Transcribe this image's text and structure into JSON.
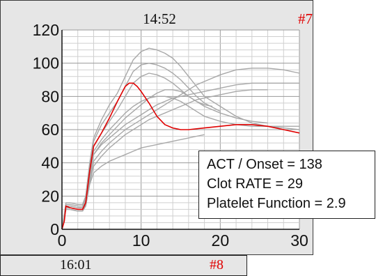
{
  "panel": {
    "time": "14:52",
    "id": "#7",
    "id_color": "#e00000",
    "background": "#e6e6e6"
  },
  "results": {
    "act_onset": "ACT / Onset = 138",
    "clot_rate": "Clot RATE = 29",
    "platelet_function": "Platelet Function = 2.9"
  },
  "next_panel": {
    "time": "16:01",
    "id": "#8"
  },
  "chart_data": {
    "type": "line",
    "title": "",
    "xlabel": "",
    "ylabel": "",
    "xlim": [
      0,
      30
    ],
    "ylim": [
      0,
      120
    ],
    "x_ticks": [
      "0",
      "10",
      "20",
      "30"
    ],
    "y_ticks": [
      "0",
      "20",
      "40",
      "60",
      "80",
      "100",
      "120"
    ],
    "grid": true,
    "highlight_color": "#e00000",
    "reference_color": "#a8a8a8",
    "highlight_series": {
      "x": [
        0,
        0.3,
        0.5,
        1,
        2,
        2.6,
        3,
        3.5,
        4,
        5,
        6,
        7,
        8,
        8.5,
        9,
        9.5,
        10,
        11,
        12,
        13,
        14,
        15,
        16,
        18,
        20,
        22,
        24,
        26,
        28,
        30
      ],
      "y": [
        0,
        5,
        14,
        13,
        12,
        12,
        16,
        35,
        50,
        58,
        67,
        77,
        86,
        88,
        88,
        86,
        83,
        76,
        68,
        63,
        61,
        60,
        60,
        61,
        62,
        63,
        63,
        62,
        60,
        58
      ]
    },
    "reference_series": [
      {
        "x": [
          0,
          0.5,
          1,
          2,
          2.6,
          3,
          3.5,
          4,
          5,
          6,
          7,
          8,
          9,
          10,
          11,
          12,
          13,
          14,
          15,
          16,
          17,
          18,
          20,
          22,
          24,
          26,
          28,
          30
        ],
        "y": [
          0,
          15,
          15,
          14,
          14,
          20,
          40,
          55,
          66,
          75,
          82,
          92,
          102,
          107,
          109,
          108,
          106,
          103,
          98,
          92,
          86,
          80,
          74,
          68,
          64,
          62,
          61,
          60
        ]
      },
      {
        "x": [
          0,
          0.5,
          1,
          2,
          2.6,
          3,
          3.5,
          4,
          5,
          6,
          7,
          8,
          9,
          10,
          11,
          12,
          13,
          14,
          15,
          16,
          17,
          18,
          20
        ],
        "y": [
          0,
          14,
          14,
          13,
          13,
          18,
          38,
          53,
          63,
          70,
          77,
          86,
          95,
          99,
          100,
          99,
          97,
          94,
          90,
          85,
          80,
          76,
          71
        ]
      },
      {
        "x": [
          0,
          0.5,
          1,
          2,
          2.6,
          3,
          3.5,
          4,
          5,
          6,
          7,
          8,
          9,
          10,
          11,
          12,
          13,
          14,
          15,
          16,
          17,
          18,
          20,
          22,
          24,
          26
        ],
        "y": [
          0,
          16,
          16,
          15,
          15,
          20,
          37,
          50,
          58,
          65,
          72,
          80,
          88,
          92,
          94,
          93,
          91,
          88,
          84,
          80,
          77,
          74,
          70,
          67,
          65,
          64
        ]
      },
      {
        "x": [
          0,
          0.5,
          1,
          2,
          2.6,
          3,
          3.5,
          4,
          5,
          6,
          7,
          8,
          9,
          10,
          11,
          12,
          13,
          14,
          15,
          16,
          17,
          18,
          20,
          22,
          24,
          26,
          28,
          30
        ],
        "y": [
          0,
          13,
          13,
          12,
          12,
          16,
          34,
          47,
          54,
          60,
          65,
          70,
          74,
          77,
          79,
          80,
          80,
          79,
          77,
          74,
          71,
          68,
          65,
          63,
          62,
          62,
          62,
          62
        ]
      },
      {
        "x": [
          0,
          0.5,
          1,
          2,
          2.6,
          3,
          3.5,
          4,
          5,
          6,
          7,
          8,
          9,
          10,
          11,
          12,
          13,
          14,
          15,
          16,
          17,
          18,
          19
        ],
        "y": [
          0,
          12,
          12,
          11,
          11,
          15,
          32,
          45,
          52,
          57,
          62,
          67,
          71,
          75,
          79,
          82,
          84,
          84,
          83,
          80,
          77,
          75,
          74
        ]
      },
      {
        "x": [
          0,
          0.5,
          1,
          2,
          2.6,
          3,
          3.5,
          4,
          5,
          6,
          7,
          8,
          9,
          10,
          11,
          12,
          13,
          14,
          15,
          16,
          17,
          18,
          20,
          22,
          24,
          26,
          28,
          30
        ],
        "y": [
          0,
          14,
          14,
          13,
          13,
          17,
          33,
          45,
          51,
          55,
          59,
          63,
          66,
          69,
          72,
          75,
          77,
          79,
          80,
          81,
          82,
          83,
          85,
          87,
          88,
          88,
          88,
          88
        ]
      },
      {
        "x": [
          0,
          0.5,
          1,
          2,
          2.6,
          3,
          3.5,
          4,
          5,
          6,
          7,
          8,
          9,
          10,
          11,
          12,
          13,
          14,
          15,
          16,
          17,
          18,
          20,
          22,
          24,
          26,
          28,
          30
        ],
        "y": [
          0,
          13,
          13,
          12,
          12,
          16,
          30,
          41,
          47,
          52,
          56,
          60,
          63,
          66,
          69,
          72,
          75,
          78,
          81,
          84,
          87,
          89,
          93,
          96,
          97,
          97,
          96,
          94
        ]
      },
      {
        "x": [
          0,
          0.5,
          1,
          2,
          2.6,
          3,
          3.5,
          4,
          5,
          6,
          7,
          8,
          9,
          10,
          11,
          12,
          13,
          14,
          15,
          16,
          17,
          18,
          20,
          22,
          24,
          26
        ],
        "y": [
          0,
          12,
          12,
          11,
          11,
          14,
          28,
          38,
          44,
          49,
          53,
          57,
          60,
          63,
          66,
          68,
          70,
          72,
          74,
          76,
          78,
          79,
          81,
          83,
          84,
          84
        ]
      },
      {
        "x": [
          0,
          0.5,
          1,
          2,
          2.6,
          3,
          3.5,
          4,
          5,
          6,
          7,
          8,
          9,
          10,
          11,
          12,
          13,
          14,
          15,
          16,
          17,
          18
        ],
        "y": [
          0,
          12,
          12,
          11,
          11,
          14,
          27,
          34,
          38,
          41,
          43,
          45,
          47,
          49,
          50,
          51,
          52,
          53,
          54,
          55,
          56,
          57
        ]
      }
    ]
  }
}
